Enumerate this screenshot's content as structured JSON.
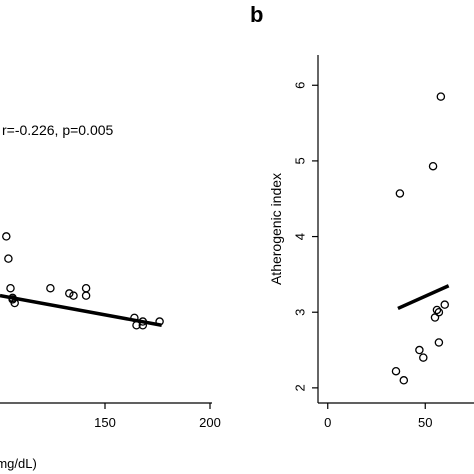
{
  "chart_data": [
    {
      "type": "scatter",
      "panel": "",
      "annotation": "r=-0.226, p=0.005",
      "xlabel": "(mg/dL)",
      "ylabel": "",
      "xlim": [
        100,
        200
      ],
      "ylim": [
        1.8,
        6.5
      ],
      "x_ticks": [
        {
          "v": 150,
          "t": "150"
        },
        {
          "v": 200,
          "t": "200"
        }
      ],
      "y_ticks": [],
      "x": [
        103,
        104,
        105,
        106,
        107,
        106,
        124,
        133,
        135,
        141,
        141,
        164,
        165,
        168,
        168,
        176
      ],
      "y": [
        4.05,
        3.75,
        3.35,
        3.22,
        3.15,
        3.2,
        3.35,
        3.28,
        3.25,
        3.35,
        3.25,
        2.95,
        2.85,
        2.9,
        2.85,
        2.9
      ],
      "fit": {
        "x": [
          100,
          177
        ],
        "y": [
          3.25,
          2.85
        ]
      }
    },
    {
      "type": "scatter",
      "panel": "b",
      "annotation": "",
      "xlabel": "",
      "ylabel": "Atherogenic index",
      "xlim": [
        -5,
        75
      ],
      "ylim": [
        1.8,
        6.4
      ],
      "x_ticks": [
        {
          "v": 0,
          "t": "0"
        },
        {
          "v": 50,
          "t": "50"
        }
      ],
      "y_ticks": [
        {
          "v": 2,
          "t": "2"
        },
        {
          "v": 3,
          "t": "3"
        },
        {
          "v": 4,
          "t": "4"
        },
        {
          "v": 5,
          "t": "5"
        },
        {
          "v": 6,
          "t": "6"
        }
      ],
      "x": [
        37,
        35,
        39,
        47,
        49,
        54,
        56,
        57,
        55,
        57,
        58,
        60
      ],
      "y": [
        4.57,
        2.22,
        2.1,
        2.5,
        2.4,
        4.93,
        3.03,
        3.0,
        2.93,
        2.6,
        5.85,
        3.1
      ],
      "fit": {
        "x": [
          36,
          62
        ],
        "y": [
          3.05,
          3.35
        ]
      }
    }
  ]
}
